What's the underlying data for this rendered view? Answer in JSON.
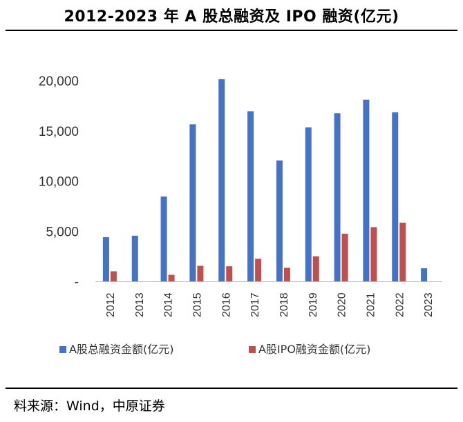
{
  "chart_data": {
    "type": "bar",
    "title": "2012-2023 年 A 股总融资及 IPO 融资(亿元)",
    "categories": [
      "2012",
      "2013",
      "2014",
      "2015",
      "2016",
      "2017",
      "2018",
      "2019",
      "2020",
      "2021",
      "2022",
      "2023"
    ],
    "series": [
      {
        "name": "A股总融资金额(亿元)",
        "color": "#4472C4",
        "values": [
          4400,
          4550,
          8450,
          15650,
          20150,
          16950,
          12050,
          15350,
          16750,
          18100,
          16850,
          1300
        ]
      },
      {
        "name": "A股IPO融资金额(亿元)",
        "color": "#C0504D",
        "values": [
          1000,
          0,
          650,
          1550,
          1500,
          2250,
          1350,
          2500,
          4750,
          5400,
          5850,
          0
        ]
      }
    ],
    "yticks": [
      "-",
      "5,000",
      "10,000",
      "15,000",
      "20,000"
    ],
    "ylim": [
      0,
      20000
    ],
    "legend_position": "bottom",
    "grid": false
  },
  "source": "料来源：Wind，中原证券"
}
